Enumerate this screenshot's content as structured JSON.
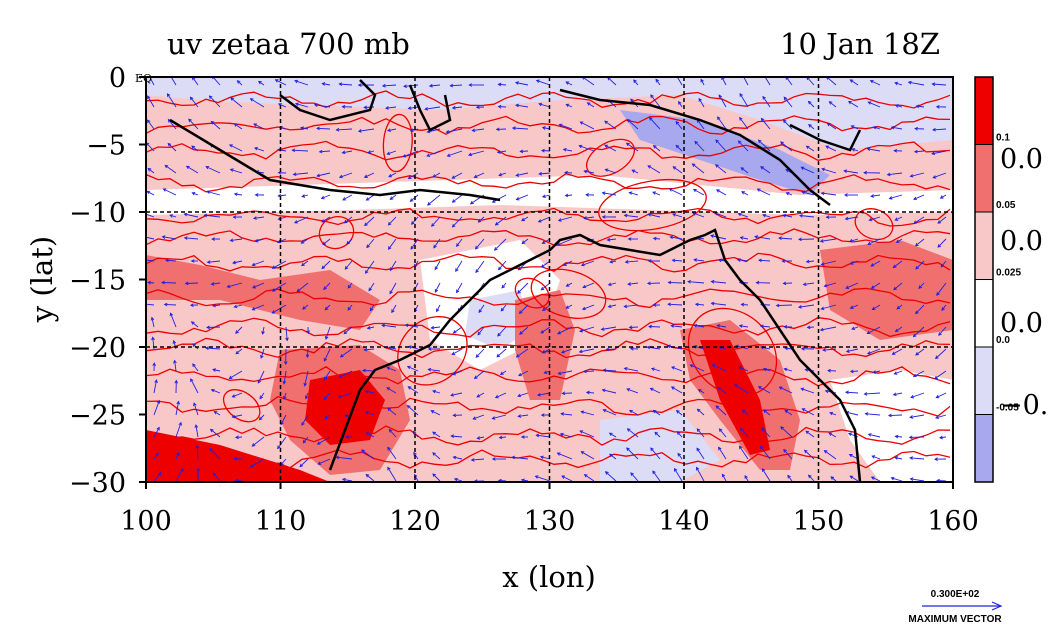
{
  "figure": {
    "title_left": "uv zetaa 700 mb",
    "title_right": "10 Jan 18Z",
    "xlabel": "x (lon)",
    "ylabel": "y (lat)",
    "eq_label": "EQ"
  },
  "chart_data": {
    "type": "heatmap",
    "title": "uv zetaa 700 mb",
    "subtitle": "10 Jan 18Z",
    "xlabel": "x (lon)",
    "ylabel": "y (lat)",
    "xlim": [
      100,
      160
    ],
    "ylim": [
      -30,
      0
    ],
    "xticks": [
      100,
      110,
      120,
      130,
      140,
      150,
      160
    ],
    "yticks": [
      0,
      -5,
      -10,
      -15,
      -20,
      -25,
      -30
    ],
    "xtick_labels": [
      "100",
      "110",
      "120",
      "130",
      "140",
      "150",
      "160"
    ],
    "ytick_labels": [
      "0",
      "−5",
      "−10",
      "−15",
      "−20",
      "−25",
      "−30"
    ],
    "grid": true,
    "gridlines_x": [
      110,
      120,
      130,
      140,
      150
    ],
    "gridlines_y": [
      -10,
      -20
    ],
    "colorbar": {
      "levels": [
        {
          "color": "#ee0000",
          "label": "0.1"
        },
        {
          "color": "#f07070",
          "label": "0.05"
        },
        {
          "color": "#f8c8c8",
          "label": "0.025"
        },
        {
          "color": "#ffffff",
          "label": "0.0"
        },
        {
          "color": "#dcdcf6",
          "label": "-0.05"
        },
        {
          "color": "#a8a8ee",
          "label": ""
        }
      ],
      "side_labels": [
        "0.0",
        "0.0",
        "0.0",
        "−0."
      ]
    },
    "vector_legend": {
      "value": "0.300E+02",
      "label": "MAXIMUM VECTOR"
    },
    "vector_color": "#2020e0",
    "contour_color": "#ee0000"
  }
}
